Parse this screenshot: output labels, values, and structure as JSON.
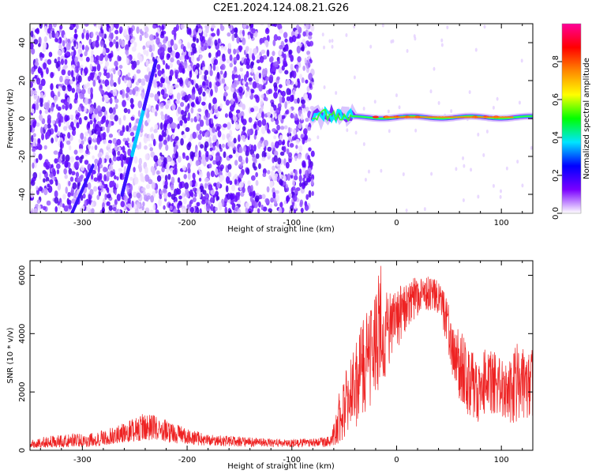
{
  "figure": {
    "title": "C2E1.2024.124.08.21.G26"
  },
  "chart_data": [
    {
      "type": "heatmap",
      "name": "spectrogram",
      "title": "C2E1.2024.124.08.21.G26",
      "xlabel": "Height of straight line (km)",
      "ylabel": "Frequency (Hz)",
      "xlim": [
        -350,
        130
      ],
      "ylim": [
        -50,
        50
      ],
      "x_ticks": [
        -300,
        -200,
        -100,
        0,
        100
      ],
      "y_ticks": [
        -40,
        -20,
        0,
        20,
        40
      ],
      "x_tick_labels": [
        "-300",
        "-200",
        "-100",
        "0",
        "100"
      ],
      "y_tick_labels": [
        "-40",
        "-20",
        "0",
        "20",
        "40"
      ],
      "noise_region_x": [
        -350,
        -80
      ],
      "sparse_gap_x": [
        -250,
        -232
      ],
      "satellite_track": {
        "x": [
          -262,
          -230
        ],
        "y": [
          -40,
          30
        ]
      },
      "signal_band": {
        "center_hz": 0,
        "x_start": -80,
        "x_end": 130
      },
      "colorbar": {
        "label": "Normalized spectral amplitude",
        "range": [
          0.0,
          1.0
        ],
        "ticks": [
          0.0,
          0.2,
          0.4,
          0.6,
          0.8
        ],
        "tick_labels": [
          "0.0",
          "0.2",
          "0.4",
          "0.6",
          "0.8"
        ],
        "colors": [
          "#ffffff",
          "#7a00ff",
          "#0000ff",
          "#00e5ff",
          "#00ff00",
          "#ffff00",
          "#ff8800",
          "#ff0000",
          "#ff0099"
        ]
      },
      "grid": false
    },
    {
      "type": "line",
      "name": "snr",
      "xlabel": "Height of straight line (km)",
      "ylabel": "SNR (10 * v/v)",
      "xlim": [
        -350,
        130
      ],
      "ylim": [
        0,
        6500
      ],
      "x_ticks": [
        -300,
        -200,
        -100,
        0,
        100
      ],
      "y_ticks": [
        0,
        2000,
        4000,
        6000
      ],
      "x_tick_labels": [
        "-300",
        "-200",
        "-100",
        "0",
        "100"
      ],
      "y_tick_labels": [
        "0",
        "2000",
        "4000",
        "6000"
      ],
      "color": "#ee2222",
      "grid": false,
      "x": [
        -350,
        -320,
        -290,
        -260,
        -240,
        -220,
        -200,
        -180,
        -160,
        -140,
        -120,
        -100,
        -80,
        -62,
        -55,
        -45,
        -35,
        -25,
        -15,
        -5,
        5,
        15,
        25,
        35,
        42,
        48,
        55,
        62,
        68,
        75,
        85,
        95,
        105,
        115,
        125,
        130
      ],
      "y": [
        200,
        250,
        300,
        500,
        800,
        650,
        450,
        350,
        300,
        280,
        250,
        240,
        250,
        280,
        1100,
        1800,
        2600,
        3400,
        3900,
        4300,
        4900,
        5300,
        5500,
        5500,
        5300,
        4400,
        3200,
        2900,
        2700,
        2100,
        2600,
        2300,
        2100,
        2400,
        2300,
        2600
      ],
      "envelope_top": [
        400,
        550,
        600,
        950,
        1350,
        1050,
        750,
        550,
        500,
        450,
        400,
        400,
        400,
        500,
        2300,
        3000,
        4200,
        5000,
        6500,
        5300,
        5700,
        5900,
        6000,
        6000,
        5700,
        5200,
        4300,
        4100,
        3700,
        3200,
        3500,
        3400,
        3000,
        3700,
        3400,
        3600
      ],
      "envelope_bottom": [
        80,
        100,
        120,
        250,
        350,
        280,
        180,
        150,
        130,
        120,
        110,
        100,
        100,
        120,
        200,
        600,
        900,
        1400,
        2100,
        3000,
        3800,
        4400,
        4800,
        4800,
        4600,
        3500,
        2200,
        1500,
        1100,
        800,
        1300,
        1200,
        1000,
        700,
        800,
        1200
      ]
    }
  ]
}
